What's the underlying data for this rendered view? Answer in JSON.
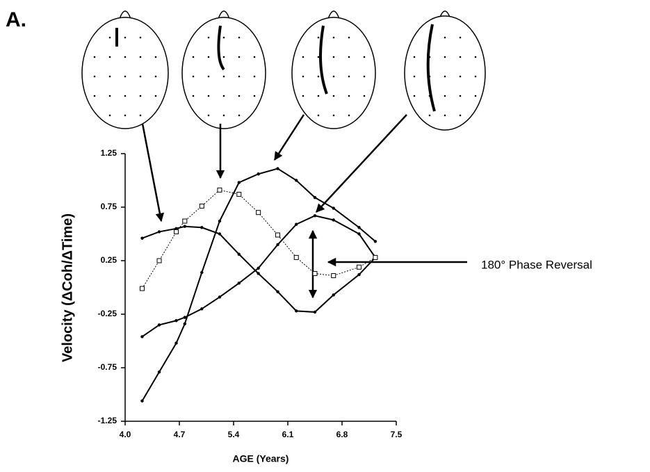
{
  "panel_label": "A.",
  "annotation": "180° Phase Reversal",
  "chart_data": {
    "type": "line",
    "xlabel": "AGE (Years)",
    "ylabel": "Velocity (ΔCoh/ΔTime)",
    "x": [
      4.22,
      4.44,
      4.66,
      4.77,
      4.99,
      5.22,
      5.47,
      5.72,
      5.97,
      6.21,
      6.45,
      6.69,
      7.02,
      7.23
    ],
    "xlim": [
      4,
      7.5
    ],
    "xticks": [
      {
        "value": 4,
        "label": "4.0"
      },
      4.7,
      5.4,
      6.1,
      6.8,
      7.5
    ],
    "ylim": [
      -1.25,
      1.25
    ],
    "yticks": [
      -1.25,
      -0.75,
      -0.25,
      0.25,
      0.75,
      1.25
    ],
    "series": [
      {
        "color": "#000000",
        "marker": "circle",
        "dash": false,
        "values": [
          0.46,
          0.52,
          0.55,
          0.57,
          0.56,
          0.5,
          0.31,
          0.13,
          -0.04,
          -0.22,
          -0.23,
          -0.07,
          0.12,
          0.28
        ]
      },
      {
        "color": "#000000",
        "marker": "circle",
        "dash": false,
        "values": [
          -0.46,
          -0.35,
          -0.31,
          -0.28,
          -0.2,
          -0.09,
          0.04,
          0.18,
          0.4,
          0.59,
          0.67,
          0.63,
          0.5,
          0.28
        ]
      },
      {
        "color": "#000000",
        "marker": "circle",
        "dash": false,
        "values": [
          -1.06,
          -0.79,
          -0.52,
          -0.34,
          0.14,
          0.62,
          0.98,
          1.06,
          1.11,
          1.0,
          0.84,
          0.74,
          0.56,
          0.43
        ]
      },
      {
        "color": "#000000",
        "marker": "square",
        "dash": true,
        "values": [
          -0.01,
          0.25,
          0.52,
          0.62,
          0.76,
          0.91,
          0.87,
          0.7,
          0.49,
          0.28,
          0.13,
          0.11,
          0.19,
          0.28
        ]
      }
    ]
  }
}
